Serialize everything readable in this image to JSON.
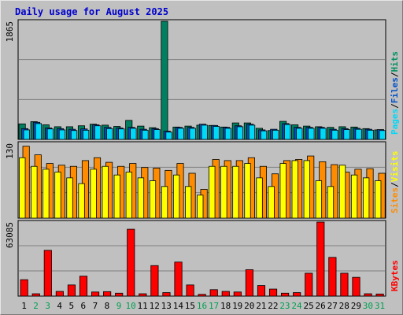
{
  "title": "Daily usage for August 2025",
  "colors": {
    "pages": "#00d8f8",
    "files": "#0050c8",
    "hits": "#009060",
    "hits_fill": "#008060",
    "visits": "#ffff00",
    "sites": "#ff8c00",
    "kbytes": "#ff0000",
    "weekend_label": "#00a050",
    "weekday_label": "#000000",
    "panel_bg": "#c0c0c0",
    "gridline": "#7f7f7f"
  },
  "chart_data": [
    {
      "type": "bar",
      "panel": "hits-files-pages",
      "ylabel_max": "1865",
      "ymax": 1865,
      "legend_right": [
        "Pages",
        "/",
        "Files",
        "/",
        "Hits"
      ],
      "categories": [
        "1",
        "2",
        "3",
        "4",
        "5",
        "6",
        "7",
        "8",
        "9",
        "10",
        "11",
        "12",
        "13",
        "14",
        "15",
        "16",
        "17",
        "18",
        "19",
        "20",
        "21",
        "22",
        "23",
        "24",
        "25",
        "26",
        "27",
        "28",
        "29",
        "30",
        "31"
      ],
      "series": [
        {
          "name": "Hits",
          "values": [
            245,
            280,
            230,
            200,
            200,
            215,
            240,
            225,
            205,
            300,
            210,
            185,
            1865,
            195,
            210,
            225,
            220,
            195,
            260,
            260,
            175,
            140,
            285,
            230,
            210,
            200,
            190,
            200,
            195,
            170,
            150
          ]
        },
        {
          "name": "Files",
          "values": [
            170,
            270,
            180,
            170,
            160,
            165,
            230,
            190,
            180,
            190,
            160,
            170,
            130,
            190,
            190,
            240,
            220,
            190,
            215,
            240,
            150,
            160,
            250,
            190,
            190,
            190,
            160,
            170,
            175,
            160,
            155
          ]
        },
        {
          "name": "Pages",
          "values": [
            150,
            250,
            165,
            150,
            140,
            145,
            215,
            170,
            165,
            175,
            145,
            155,
            115,
            175,
            175,
            225,
            205,
            175,
            200,
            225,
            135,
            145,
            235,
            175,
            175,
            175,
            145,
            155,
            160,
            145,
            140
          ]
        }
      ]
    },
    {
      "type": "bar",
      "panel": "visits-sites",
      "ylabel_max": "130",
      "ymax": 130,
      "legend_right": [
        "Sites",
        "/",
        "Visits"
      ],
      "categories": [
        "1",
        "2",
        "3",
        "4",
        "5",
        "6",
        "7",
        "8",
        "9",
        "10",
        "11",
        "12",
        "13",
        "14",
        "15",
        "16",
        "17",
        "18",
        "19",
        "20",
        "21",
        "22",
        "23",
        "24",
        "25",
        "26",
        "27",
        "28",
        "29",
        "30",
        "31"
      ],
      "series": [
        {
          "name": "Visits",
          "values": [
            105,
            90,
            85,
            80,
            70,
            60,
            85,
            90,
            75,
            80,
            70,
            65,
            55,
            75,
            55,
            40,
            90,
            90,
            90,
            95,
            70,
            55,
            95,
            100,
            100,
            65,
            55,
            92,
            75,
            70,
            65
          ]
        },
        {
          "name": "Sites",
          "values": [
            125,
            110,
            95,
            92,
            90,
            100,
            105,
            97,
            90,
            95,
            88,
            87,
            83,
            95,
            78,
            50,
            102,
            100,
            100,
            105,
            90,
            77,
            100,
            102,
            108,
            98,
            93,
            80,
            85,
            86,
            78
          ]
        }
      ]
    },
    {
      "type": "bar",
      "panel": "kbytes",
      "ylabel_max": "63085",
      "ymax": 63085,
      "legend_right": [
        "KBytes"
      ],
      "categories": [
        "1",
        "2",
        "3",
        "4",
        "5",
        "6",
        "7",
        "8",
        "9",
        "10",
        "11",
        "12",
        "13",
        "14",
        "15",
        "16",
        "17",
        "18",
        "19",
        "20",
        "21",
        "22",
        "23",
        "24",
        "25",
        "26",
        "27",
        "28",
        "29",
        "30",
        "31"
      ],
      "series": [
        {
          "name": "KBytes",
          "values": [
            14000,
            2000,
            39000,
            4000,
            9500,
            17000,
            3500,
            3800,
            2500,
            57000,
            2000,
            26000,
            3000,
            29000,
            9500,
            1500,
            5500,
            4000,
            3500,
            22500,
            9000,
            6000,
            2500,
            3000,
            19500,
            63085,
            33000,
            19500,
            16000,
            2000,
            1800
          ]
        }
      ]
    }
  ],
  "weekend_days": [
    "2",
    "3",
    "9",
    "10",
    "16",
    "17",
    "23",
    "24",
    "30",
    "31"
  ]
}
